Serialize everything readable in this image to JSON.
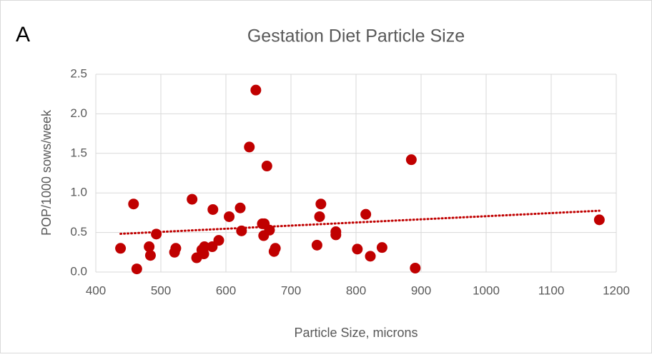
{
  "chart_data": {
    "type": "scatter",
    "panel_label": "A",
    "title": "Gestation Diet Particle Size",
    "x_label": "Particle Size, microns",
    "y_label": "POP/1000 sows/week",
    "color": "#c00000",
    "trendline": "linear",
    "trendline_color": "#c00000",
    "grid": true,
    "xlim": [
      400,
      1200
    ],
    "ylim": [
      0,
      2.5
    ],
    "xticks": [
      400,
      500,
      600,
      700,
      800,
      900,
      1000,
      1100,
      1200
    ],
    "yticks": [
      {
        "value": 0,
        "label": "0.0"
      },
      0.5,
      {
        "value": 1,
        "label": "1.0"
      },
      1.5,
      {
        "value": 2,
        "label": "2.0"
      },
      2.5
    ],
    "x": [
      438,
      458,
      463,
      482,
      484,
      493,
      521,
      523,
      548,
      555,
      563,
      566,
      567,
      579,
      580,
      589,
      605,
      622,
      624,
      636,
      646,
      656,
      658,
      659,
      663,
      667,
      674,
      676,
      740,
      744,
      746,
      769,
      769,
      802,
      815,
      822,
      840,
      885,
      891,
      1174
    ],
    "values": [
      0.3,
      0.86,
      0.04,
      0.32,
      0.21,
      0.48,
      0.25,
      0.3,
      0.92,
      0.18,
      0.28,
      0.23,
      0.32,
      0.32,
      0.79,
      0.4,
      0.7,
      0.81,
      0.52,
      1.58,
      2.3,
      0.61,
      0.46,
      0.61,
      1.34,
      0.53,
      0.26,
      0.3,
      0.34,
      0.7,
      0.86,
      0.51,
      0.47,
      0.29,
      0.73,
      0.2,
      0.31,
      1.42,
      0.05,
      0.66
    ]
  }
}
